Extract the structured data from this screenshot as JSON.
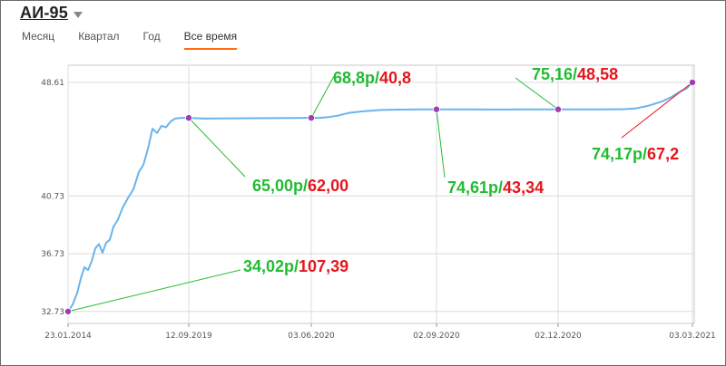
{
  "header": {
    "title": "АИ-95"
  },
  "tabs": [
    {
      "label": "Месяц",
      "active": false
    },
    {
      "label": "Квартал",
      "active": false
    },
    {
      "label": "Год",
      "active": false
    },
    {
      "label": "Все время",
      "active": true
    }
  ],
  "colors": {
    "line": "#6ab4ec",
    "marker": "#a23cb4",
    "green": "#22bb33",
    "red": "#e4161e",
    "tab_accent": "#ff6a13"
  },
  "chart_data": {
    "type": "line",
    "x_ticks": [
      "23.01.2014",
      "12.09.2019",
      "03.06.2020",
      "02.09.2020",
      "02.12.2020",
      "03.03.2021"
    ],
    "y_ticks": [
      32.73,
      36.73,
      40.73,
      48.61
    ],
    "ylim": [
      31.9,
      49.8
    ],
    "grid": true,
    "series": [
      {
        "values": [
          32.73,
          33.2,
          34.0,
          35.0,
          35.8,
          35.6,
          36.2,
          37.1,
          37.4,
          36.8,
          37.5,
          37.7,
          38.6,
          39.1,
          39.9,
          40.6,
          41.2,
          42.4,
          42.9,
          44.0,
          45.4,
          45.1,
          45.6,
          45.5,
          45.9,
          46.1,
          46.15,
          46.15,
          46.1,
          46.12,
          46.13,
          46.15,
          46.15,
          46.2,
          46.3,
          46.5,
          46.6,
          46.7,
          46.72,
          46.74,
          46.74,
          46.74,
          46.74,
          46.73,
          46.73,
          46.74,
          46.74,
          46.74,
          46.74,
          46.74,
          46.74,
          46.75,
          46.75,
          46.8,
          47.0,
          47.3,
          47.6,
          48.0,
          48.2,
          48.61
        ]
      }
    ],
    "points": [
      {
        "label": "23.01.2014",
        "value": 32.73
      },
      {
        "label": "12.09.2019",
        "value": 46.15
      },
      {
        "label": "03.06.2020",
        "value": 46.15
      },
      {
        "label": "02.09.2020",
        "value": 46.74
      },
      {
        "label": "02.12.2020",
        "value": 46.74
      },
      {
        "label": "03.03.2021",
        "value": 48.61
      }
    ],
    "annotations": [
      {
        "green": "34,02р/",
        "red": "107,39"
      },
      {
        "green": "65,00р/",
        "red": "62,00"
      },
      {
        "green": "68,8р/",
        "red": "40,8"
      },
      {
        "green": "74,61р/",
        "red": "43,34"
      },
      {
        "green": "75,16/",
        "red": "48,58"
      },
      {
        "green": "74,17р/",
        "red": "67,2"
      }
    ]
  }
}
